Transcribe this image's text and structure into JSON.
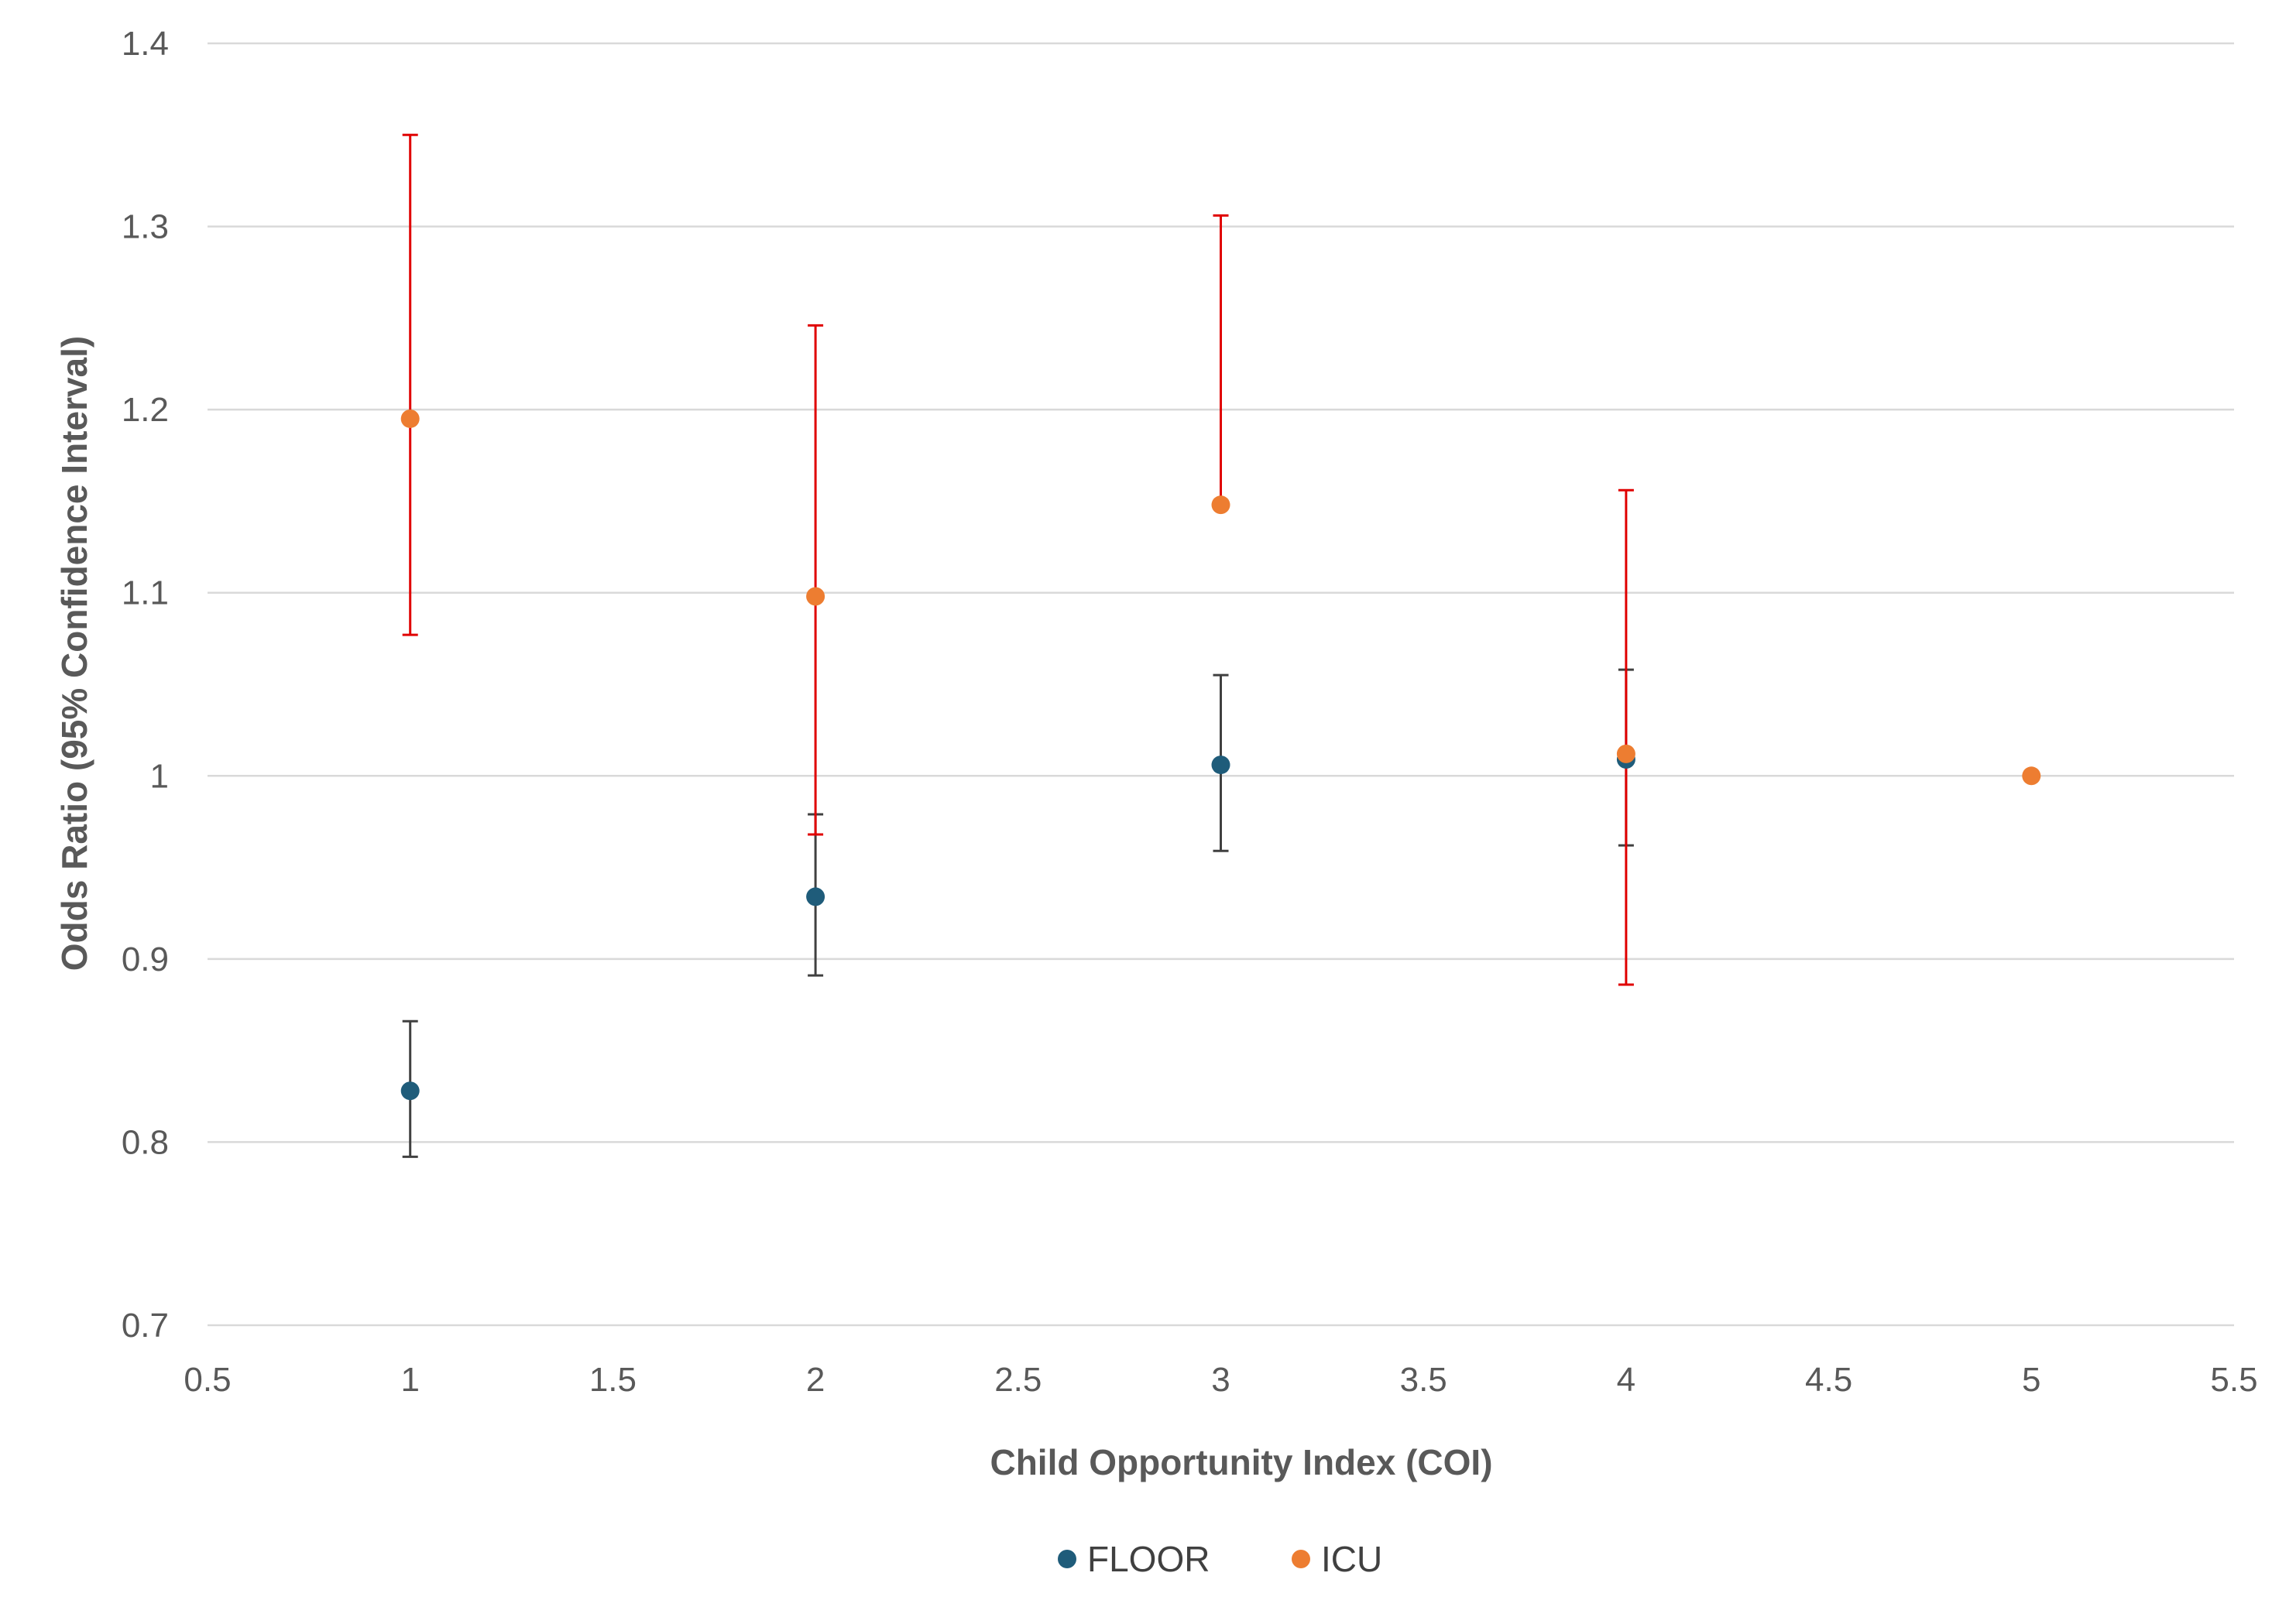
{
  "chart_data": {
    "type": "scatter",
    "title": "",
    "xlabel": "Child Opportunity Index (COI)",
    "ylabel": "Odds Ratio (95% Confidence Interval)",
    "xlim": [
      0.5,
      5.5
    ],
    "ylim": [
      0.7,
      1.4
    ],
    "x_ticks": [
      0.5,
      1,
      1.5,
      2,
      2.5,
      3,
      3.5,
      4,
      4.5,
      5,
      5.5
    ],
    "x_tick_labels": [
      "0.5",
      "1",
      "1.5",
      "2",
      "2.5",
      "3",
      "3.5",
      "4",
      "4.5",
      "5",
      "5.5"
    ],
    "y_ticks": [
      0.7,
      0.8,
      0.9,
      1.0,
      1.1,
      1.2,
      1.3,
      1.4
    ],
    "y_tick_labels": [
      "0.7",
      "0.8",
      "0.9",
      "1",
      "1.1",
      "1.2",
      "1.3",
      "1.4"
    ],
    "grid": "horizontal",
    "legend_position": "bottom-center",
    "series": [
      {
        "name": "FLOOR",
        "color": "#1f5c7a",
        "error_bar_color": "#404040",
        "x": [
          1,
          2,
          3,
          4
        ],
        "y": [
          0.828,
          0.934,
          1.006,
          1.009
        ],
        "lower": [
          0.792,
          0.891,
          0.959,
          0.962
        ],
        "upper": [
          0.866,
          0.979,
          1.055,
          1.058
        ]
      },
      {
        "name": "ICU",
        "color": "#ed7d31",
        "error_bar_color": "#e00000",
        "x": [
          1,
          2,
          3,
          4,
          5
        ],
        "y": [
          1.195,
          1.098,
          1.148,
          1.012,
          1.0
        ],
        "lower": [
          1.077,
          0.968,
          null,
          0.886,
          null
        ],
        "upper": [
          1.35,
          1.246,
          1.306,
          1.156,
          null
        ]
      }
    ]
  }
}
